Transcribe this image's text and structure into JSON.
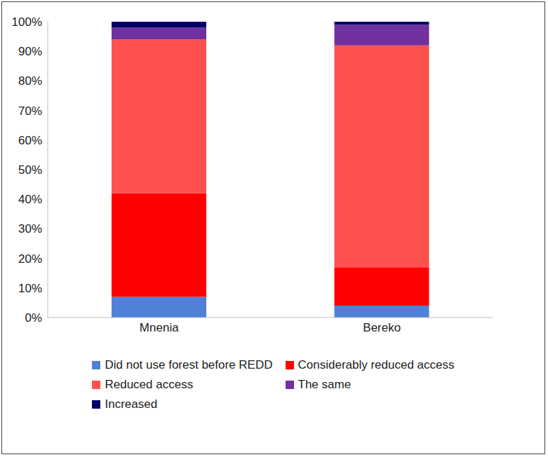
{
  "chart_data": {
    "type": "bar",
    "stacked": true,
    "categories": [
      "Mnenia",
      "Bereko"
    ],
    "series": [
      {
        "name": "Did not use forest before REDD",
        "color": "#4f81d8",
        "values": [
          7,
          4
        ]
      },
      {
        "name": "Considerably reduced access",
        "color": "#ff0000",
        "values": [
          35,
          13
        ]
      },
      {
        "name": "Reduced access",
        "color": "#ff5050",
        "values": [
          52,
          75
        ]
      },
      {
        "name": "The same",
        "color": "#7030a0",
        "values": [
          4,
          7
        ]
      },
      {
        "name": "Increased",
        "color": "#000066",
        "values": [
          2,
          1
        ]
      }
    ],
    "ylim": [
      0,
      100
    ],
    "yticks": [
      {
        "value": 0,
        "label": "0%"
      },
      {
        "value": 10,
        "label": "10%"
      },
      {
        "value": 20,
        "label": "20%"
      },
      {
        "value": 30,
        "label": "30%"
      },
      {
        "value": 40,
        "label": "40%"
      },
      {
        "value": 50,
        "label": "50%"
      },
      {
        "value": 60,
        "label": "60%"
      },
      {
        "value": 70,
        "label": "70%"
      },
      {
        "value": 80,
        "label": "80%"
      },
      {
        "value": 90,
        "label": "90%"
      },
      {
        "value": 100,
        "label": "100%"
      }
    ],
    "grid": false,
    "legend": "bottom"
  }
}
